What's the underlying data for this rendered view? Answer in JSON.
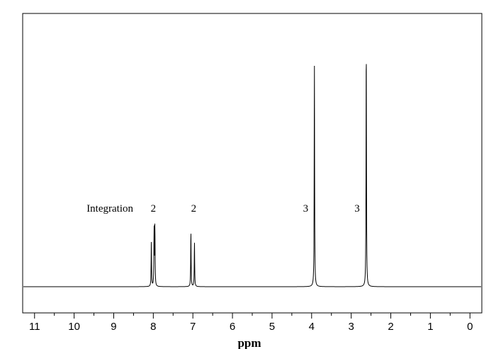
{
  "chart_data": {
    "type": "line",
    "xlabel": "ppm",
    "xlim": [
      11.3,
      -0.3
    ],
    "x_reversed": true,
    "x_ticks": [
      11,
      10,
      9,
      8,
      7,
      6,
      5,
      4,
      3,
      2,
      1,
      0
    ],
    "grid": false,
    "legend": "none",
    "integration_label": "Integration",
    "integrations": [
      {
        "ppm": 8.0,
        "value": "2"
      },
      {
        "ppm": 6.98,
        "value": "2"
      },
      {
        "ppm": 4.15,
        "value": "3"
      },
      {
        "ppm": 2.85,
        "value": "3"
      }
    ],
    "peaks": [
      {
        "ppm": 8.05,
        "height": 0.2
      },
      {
        "ppm": 7.98,
        "height": 0.25
      },
      {
        "ppm": 7.96,
        "height": 0.27
      },
      {
        "ppm": 7.05,
        "height": 0.25
      },
      {
        "ppm": 6.96,
        "height": 0.2
      },
      {
        "ppm": 3.93,
        "height": 1.0
      },
      {
        "ppm": 2.62,
        "height": 1.11
      }
    ]
  }
}
